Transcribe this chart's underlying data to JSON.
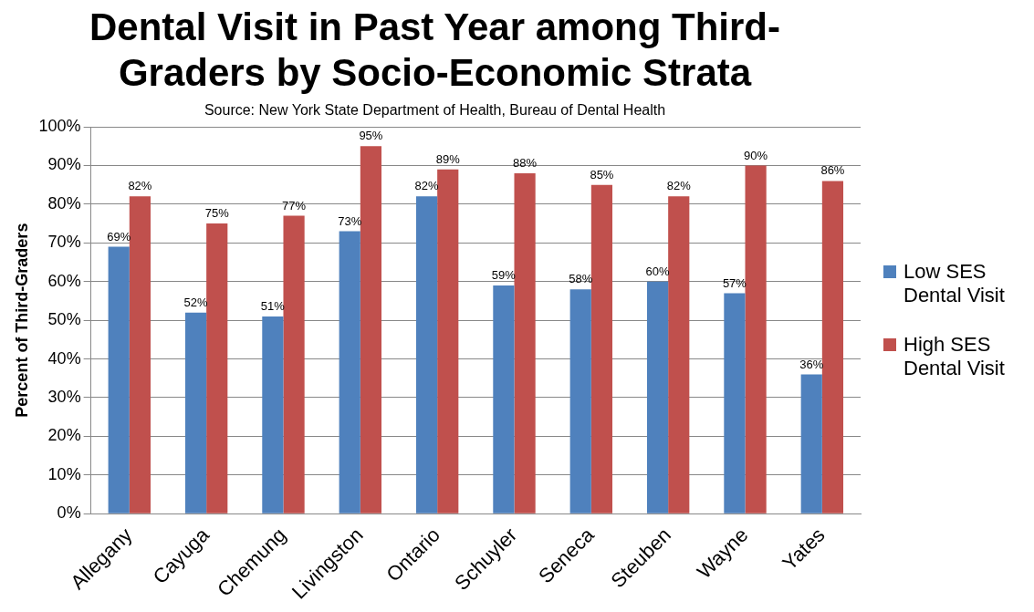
{
  "chart_data": {
    "type": "bar",
    "title": "Dental Visit in Past Year among Third-Graders by Socio-Economic Strata",
    "annotations": [
      "Source: New York State Department of Health, Bureau of Dental Health"
    ],
    "ylabel": "Percent of Third-Graders",
    "categories": [
      "Allegany",
      "Cayuga",
      "Chemung",
      "Livingston",
      "Ontario",
      "Schuyler",
      "Seneca",
      "Steuben",
      "Wayne",
      "Yates"
    ],
    "series": [
      {
        "name": "Low SES Dental Visit",
        "color": "#4f81bd",
        "values": [
          69,
          52,
          51,
          73,
          82,
          59,
          58,
          60,
          57,
          36
        ],
        "value_labels": [
          "69%",
          "52%",
          "51%",
          "73%",
          "82%",
          "59%",
          "58%",
          "60%",
          "57%",
          "36%"
        ]
      },
      {
        "name": "High SES Dental Visit",
        "color": "#c0504d",
        "values": [
          82,
          75,
          77,
          95,
          89,
          88,
          85,
          82,
          90,
          86
        ],
        "value_labels": [
          "82%",
          "75%",
          "77%",
          "95%",
          "89%",
          "88%",
          "85%",
          "82%",
          "90%",
          "86%"
        ]
      }
    ],
    "ylim": [
      0,
      100
    ],
    "yticks": [
      {
        "value": 0,
        "label": "0%"
      },
      {
        "value": 10,
        "label": "10%"
      },
      {
        "value": 20,
        "label": "20%"
      },
      {
        "value": 30,
        "label": "30%"
      },
      {
        "value": 40,
        "label": "40%"
      },
      {
        "value": 50,
        "label": "50%"
      },
      {
        "value": 60,
        "label": "60%"
      },
      {
        "value": 70,
        "label": "70%"
      },
      {
        "value": 80,
        "label": "80%"
      },
      {
        "value": 90,
        "label": "90%"
      },
      {
        "value": 100,
        "label": "100%"
      }
    ],
    "grid": "y",
    "legend": "right"
  }
}
